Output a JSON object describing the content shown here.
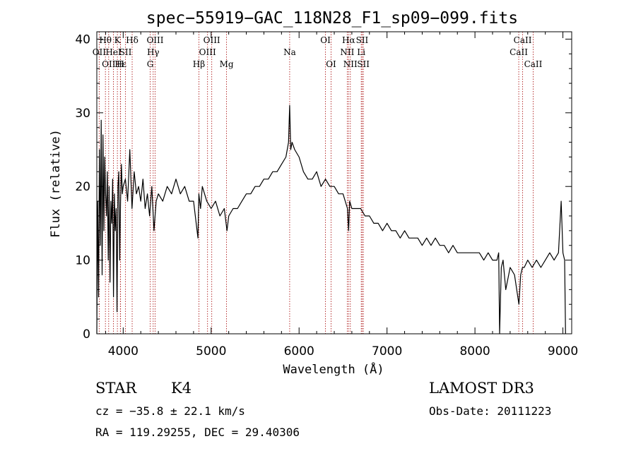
{
  "chart_data": {
    "type": "line",
    "title": "spec−55919−GAC_118N28_F1_sp09−099.fits",
    "xlabel": "Wavelength (Å)",
    "ylabel": "Flux (relative)",
    "xlim": [
      3700,
      9100
    ],
    "ylim": [
      0,
      41
    ],
    "x_ticks": [
      4000,
      5000,
      6000,
      7000,
      8000,
      9000
    ],
    "y_ticks": [
      0,
      10,
      20,
      30,
      40
    ],
    "series": [
      {
        "name": "flux",
        "x": [
          3700,
          3710,
          3720,
          3730,
          3740,
          3750,
          3760,
          3770,
          3780,
          3790,
          3800,
          3810,
          3820,
          3830,
          3840,
          3850,
          3860,
          3870,
          3880,
          3890,
          3900,
          3910,
          3920,
          3930,
          3940,
          3950,
          3960,
          3970,
          3980,
          3990,
          4000,
          4025,
          4050,
          4075,
          4100,
          4125,
          4150,
          4175,
          4200,
          4225,
          4250,
          4275,
          4300,
          4325,
          4350,
          4375,
          4400,
          4450,
          4500,
          4550,
          4600,
          4650,
          4700,
          4750,
          4800,
          4850,
          4860,
          4880,
          4900,
          4950,
          5000,
          5050,
          5100,
          5150,
          5180,
          5200,
          5250,
          5300,
          5350,
          5400,
          5450,
          5500,
          5550,
          5600,
          5650,
          5700,
          5750,
          5800,
          5850,
          5880,
          5893,
          5905,
          5920,
          5950,
          6000,
          6050,
          6100,
          6150,
          6200,
          6250,
          6300,
          6350,
          6400,
          6450,
          6500,
          6550,
          6563,
          6575,
          6600,
          6650,
          6700,
          6750,
          6800,
          6850,
          6900,
          6950,
          7000,
          7050,
          7100,
          7150,
          7200,
          7250,
          7300,
          7350,
          7400,
          7450,
          7500,
          7550,
          7600,
          7650,
          7700,
          7750,
          7800,
          7850,
          7900,
          7950,
          8000,
          8050,
          8100,
          8150,
          8200,
          8250,
          8270,
          8280,
          8300,
          8320,
          8350,
          8400,
          8450,
          8500,
          8520,
          8540,
          8560,
          8600,
          8650,
          8700,
          8750,
          8800,
          8850,
          8900,
          8950,
          8980,
          9000,
          9020,
          9030
        ],
        "y": [
          0,
          18,
          5,
          25,
          12,
          29,
          8,
          27,
          14,
          24,
          19,
          16,
          22,
          10,
          20,
          7,
          18,
          15,
          21,
          5,
          19,
          14,
          17,
          3,
          20,
          22,
          10,
          18,
          23,
          19,
          20,
          21,
          18,
          25,
          17,
          22,
          19,
          20,
          18,
          21,
          17,
          19,
          16,
          20,
          14,
          18,
          19,
          18,
          20,
          19,
          21,
          19,
          20,
          18,
          18,
          13,
          19,
          17,
          20,
          18,
          17,
          18,
          16,
          17,
          14,
          16,
          17,
          17,
          18,
          19,
          19,
          20,
          20,
          21,
          21,
          22,
          22,
          23,
          24,
          26,
          31,
          25,
          26,
          25,
          24,
          22,
          21,
          21,
          22,
          20,
          21,
          20,
          20,
          19,
          19,
          17,
          14,
          18,
          17,
          17,
          17,
          16,
          16,
          15,
          15,
          14,
          15,
          14,
          14,
          13,
          14,
          13,
          13,
          13,
          12,
          13,
          12,
          13,
          12,
          12,
          11,
          12,
          11,
          11,
          11,
          11,
          11,
          11,
          10,
          11,
          10,
          10,
          11,
          0,
          9,
          10,
          6,
          9,
          8,
          4,
          8,
          9,
          9,
          10,
          9,
          10,
          9,
          10,
          11,
          10,
          11,
          18,
          11,
          10,
          0
        ]
      }
    ],
    "line_markers": [
      {
        "wl": 3727,
        "label": "OII",
        "row": 1
      },
      {
        "wl": 3798,
        "label": "Hθ",
        "row": 0
      },
      {
        "wl": 3835,
        "label": "OII",
        "row": 2
      },
      {
        "wl": 3889,
        "label": "HeI",
        "row": 1
      },
      {
        "wl": 3934,
        "label": "K",
        "row": 0
      },
      {
        "wl": 3970,
        "label": "Hε",
        "row": 2
      },
      {
        "wl": 3968,
        "label": "H",
        "row": 2
      },
      {
        "wl": 4026,
        "label": "SII",
        "row": 1
      },
      {
        "wl": 4102,
        "label": "Hδ",
        "row": 0
      },
      {
        "wl": 4307,
        "label": "G",
        "row": 2
      },
      {
        "wl": 4341,
        "label": "Hγ",
        "row": 1
      },
      {
        "wl": 4363,
        "label": "OIII",
        "row": 0
      },
      {
        "wl": 4861,
        "label": "Hβ",
        "row": 2
      },
      {
        "wl": 4959,
        "label": "OIII",
        "row": 1
      },
      {
        "wl": 5007,
        "label": "OIII",
        "row": 0
      },
      {
        "wl": 5175,
        "label": "Mg",
        "row": 2
      },
      {
        "wl": 5893,
        "label": "Na",
        "row": 1
      },
      {
        "wl": 6300,
        "label": "OI",
        "row": 0
      },
      {
        "wl": 6364,
        "label": "OI",
        "row": 2
      },
      {
        "wl": 6548,
        "label": "NII",
        "row": 1
      },
      {
        "wl": 6563,
        "label": "Hα",
        "row": 0
      },
      {
        "wl": 6583,
        "label": "NII",
        "row": 2
      },
      {
        "wl": 6707,
        "label": "Li",
        "row": 1
      },
      {
        "wl": 6717,
        "label": "SII",
        "row": 0
      },
      {
        "wl": 6731,
        "label": "SII",
        "row": 2
      },
      {
        "wl": 8498,
        "label": "CaII",
        "row": 1
      },
      {
        "wl": 8542,
        "label": "CaII",
        "row": 0
      },
      {
        "wl": 8662,
        "label": "CaII",
        "row": 2
      }
    ]
  },
  "info": {
    "class": "STAR",
    "subclass": "K4",
    "survey": "LAMOST DR3",
    "cz": "cz = −35.8 ± 22.1 km/s",
    "obs_date": "Obs-Date: 20111223",
    "coords": "RA = 119.29255, DEC =  29.40306"
  }
}
